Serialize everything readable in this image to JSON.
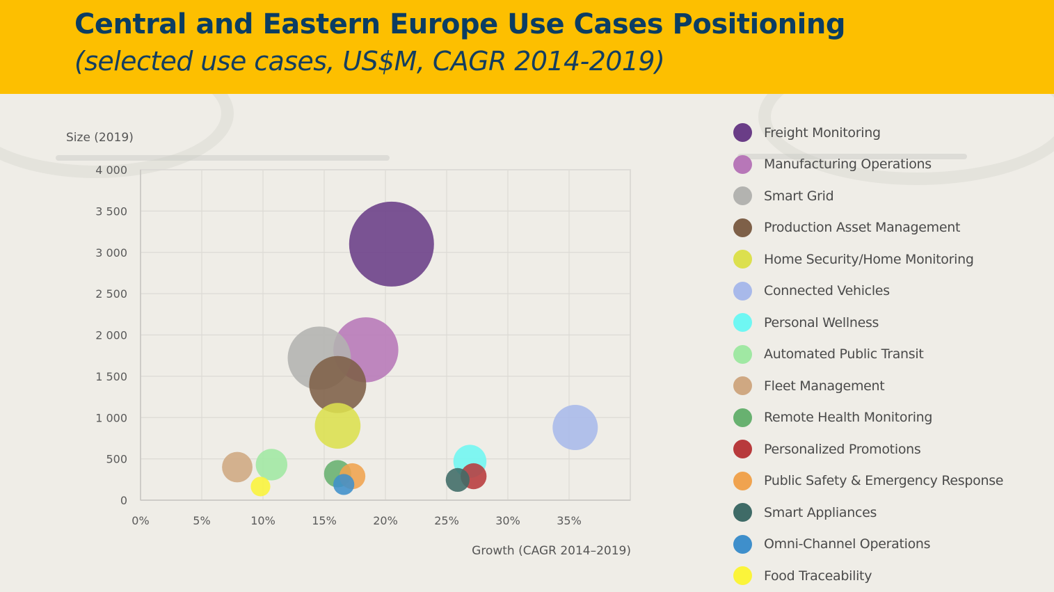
{
  "header": {
    "title": "Central and Eastern Europe Use Cases Positioning",
    "subtitle": "(selected use cases, US$M, CAGR 2014-2019)",
    "background_color": "#fdbf00",
    "text_color": "#0b3d63"
  },
  "chart_data": {
    "type": "scatter",
    "subtype": "bubble",
    "title": "Central and Eastern Europe Use Cases Positioning",
    "subtitle": "(selected use cases, US$M, CAGR 2014-2019)",
    "xlabel": "Growth (CAGR  2014–2019)",
    "ylabel": "Size (2019)",
    "xlim": [
      0,
      40
    ],
    "ylim": [
      0,
      4000
    ],
    "x_ticks": [
      0,
      5,
      10,
      15,
      20,
      25,
      30,
      35
    ],
    "x_tick_labels": [
      "0%",
      "5%",
      "10%",
      "15%",
      "20%",
      "25%",
      "30%",
      "35%"
    ],
    "y_ticks": [
      0,
      500,
      1000,
      1500,
      2000,
      2500,
      3000,
      3500,
      4000
    ],
    "y_tick_labels": [
      "0",
      "500",
      "1 000",
      "1 500",
      "2 000",
      "2 500",
      "3 000",
      "3 500",
      "4 000"
    ],
    "grid": true,
    "legend_position": "right",
    "bubble_size_note": "bubble area proportional to market size",
    "series": [
      {
        "name": "Freight Monitoring",
        "x": 20.5,
        "y": 3100,
        "color": "#6a3d87"
      },
      {
        "name": "Manufacturing Operations",
        "x": 18.4,
        "y": 1820,
        "color": "#b777b8"
      },
      {
        "name": "Smart Grid",
        "x": 14.6,
        "y": 1720,
        "color": "#b3b3b0"
      },
      {
        "name": "Production Asset Management",
        "x": 16.1,
        "y": 1400,
        "color": "#7e6048"
      },
      {
        "name": "Home Security/Home Monitoring",
        "x": 16.1,
        "y": 900,
        "color": "#dce04e"
      },
      {
        "name": "Connected Vehicles",
        "x": 35.5,
        "y": 880,
        "color": "#a8b9ea"
      },
      {
        "name": "Personal Wellness",
        "x": 26.9,
        "y": 470,
        "color": "#6ff7f3"
      },
      {
        "name": "Automated Public Transit",
        "x": 10.7,
        "y": 430,
        "color": "#a0e8a3"
      },
      {
        "name": "Fleet Management",
        "x": 7.9,
        "y": 400,
        "color": "#cfa882"
      },
      {
        "name": "Remote Health Monitoring",
        "x": 16.1,
        "y": 320,
        "color": "#68b170"
      },
      {
        "name": "Personalized Promotions",
        "x": 27.2,
        "y": 290,
        "color": "#b83a3c"
      },
      {
        "name": "Public Safety & Emergency Response",
        "x": 17.3,
        "y": 290,
        "color": "#f0a34f"
      },
      {
        "name": "Smart Appliances",
        "x": 25.9,
        "y": 245,
        "color": "#3f6b67"
      },
      {
        "name": "Omni-Channel Operations",
        "x": 16.6,
        "y": 190,
        "color": "#3f8fcb"
      },
      {
        "name": "Food Traceability",
        "x": 9.8,
        "y": 165,
        "color": "#fbf43a"
      }
    ]
  }
}
